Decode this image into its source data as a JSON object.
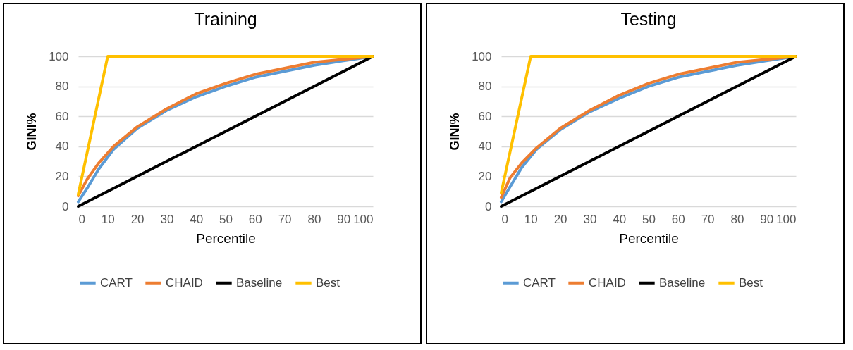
{
  "chart_data": [
    {
      "type": "line",
      "title": "Training",
      "xlabel": "Percentile",
      "ylabel": "GINI%",
      "xlim": [
        0,
        100
      ],
      "ylim": [
        0,
        100
      ],
      "xticks": [
        0,
        10,
        20,
        30,
        40,
        50,
        60,
        70,
        80,
        90,
        100
      ],
      "yticks": [
        0,
        20,
        40,
        60,
        80,
        100
      ],
      "grid": "y",
      "legend": "bottom",
      "marker": "none",
      "line_style": "solid",
      "series": [
        {
          "name": "CART",
          "color": "#5b9bd5",
          "x": [
            0,
            3,
            7,
            12,
            20,
            30,
            40,
            50,
            60,
            70,
            80,
            90,
            100
          ],
          "values": [
            3,
            12,
            25,
            38,
            52,
            64,
            73,
            80,
            86,
            90,
            94,
            97,
            100
          ]
        },
        {
          "name": "CHAID",
          "color": "#ed7d31",
          "x": [
            0,
            3,
            7,
            12,
            20,
            30,
            40,
            50,
            60,
            70,
            80,
            90,
            100
          ],
          "values": [
            7,
            18,
            29,
            40,
            53,
            65,
            75,
            82,
            88,
            92,
            96,
            98,
            100
          ]
        },
        {
          "name": "Baseline",
          "color": "#000000",
          "x": [
            0,
            100
          ],
          "values": [
            0,
            100
          ]
        },
        {
          "name": "Best",
          "color": "#ffc000",
          "x": [
            0,
            10,
            100
          ],
          "values": [
            8,
            100,
            100
          ]
        }
      ]
    },
    {
      "type": "line",
      "title": "Testing",
      "xlabel": "Percentile",
      "ylabel": "GINI%",
      "xlim": [
        0,
        100
      ],
      "ylim": [
        0,
        100
      ],
      "xticks": [
        0,
        10,
        20,
        30,
        40,
        50,
        60,
        70,
        80,
        90,
        100
      ],
      "yticks": [
        0,
        20,
        40,
        60,
        80,
        100
      ],
      "grid": "y",
      "legend": "bottom",
      "marker": "none",
      "line_style": "solid",
      "series": [
        {
          "name": "CART",
          "color": "#5b9bd5",
          "x": [
            0,
            3,
            7,
            12,
            20,
            30,
            40,
            50,
            60,
            70,
            80,
            90,
            100
          ],
          "values": [
            3,
            13,
            26,
            38,
            51,
            63,
            72,
            80,
            86,
            90,
            94,
            97,
            100
          ]
        },
        {
          "name": "CHAID",
          "color": "#ed7d31",
          "x": [
            0,
            3,
            7,
            12,
            20,
            30,
            40,
            50,
            60,
            70,
            80,
            90,
            100
          ],
          "values": [
            6,
            19,
            29,
            39,
            52,
            64,
            74,
            82,
            88,
            92,
            96,
            98,
            100
          ]
        },
        {
          "name": "Baseline",
          "color": "#000000",
          "x": [
            0,
            100
          ],
          "values": [
            0,
            100
          ]
        },
        {
          "name": "Best",
          "color": "#ffc000",
          "x": [
            0,
            10,
            100
          ],
          "values": [
            9,
            100,
            100
          ]
        }
      ]
    }
  ]
}
